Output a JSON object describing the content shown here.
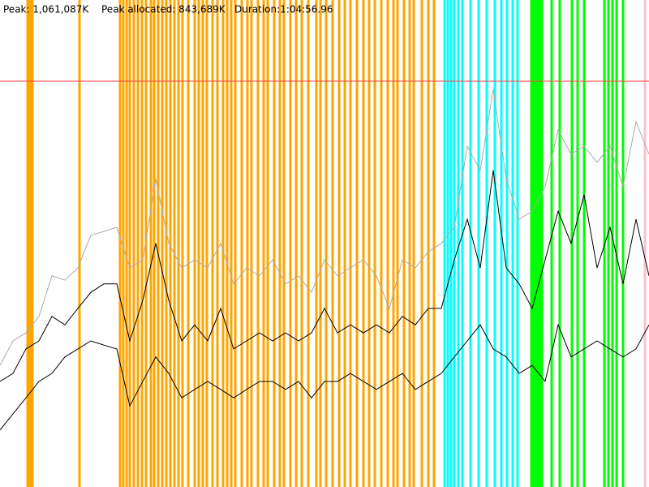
{
  "chart_data": {
    "type": "line",
    "peak": {
      "value": 1061087,
      "label": "Peak: 1,061,087K"
    },
    "peak_allocated": {
      "value": 843689,
      "label": "Peak allocated: 843,689K"
    },
    "duration": "Duration:1:04:56.96",
    "ylim": [
      0,
      1273304
    ],
    "xlim": [
      0,
      800
    ],
    "peak_color": "#ff4040",
    "x": [
      0,
      16,
      32,
      48,
      64,
      80,
      96,
      112,
      128,
      144,
      160,
      176,
      192,
      208,
      224,
      240,
      256,
      272,
      288,
      304,
      320,
      336,
      352,
      368,
      384,
      400,
      416,
      432,
      448,
      464,
      480,
      496,
      512,
      528,
      544,
      560,
      576,
      592,
      608,
      624,
      640,
      656,
      672,
      688,
      704,
      720,
      736,
      752,
      768,
      784,
      800
    ],
    "series": [
      {
        "color": "#aaaaaa",
        "values": [
          318000,
          382000,
          403000,
          446000,
          552000,
          541000,
          573000,
          658000,
          668000,
          679000,
          573000,
          594000,
          806000,
          637000,
          573000,
          594000,
          573000,
          637000,
          531000,
          573000,
          552000,
          594000,
          531000,
          552000,
          509000,
          594000,
          552000,
          573000,
          594000,
          552000,
          467000,
          594000,
          573000,
          615000,
          637000,
          679000,
          891000,
          828000,
          1040000,
          806000,
          700000,
          721000,
          785000,
          934000,
          870000,
          891000,
          849000,
          891000,
          785000,
          955000,
          870000
        ]
      },
      {
        "color": "#000000",
        "values": [
          276000,
          297000,
          361000,
          382000,
          446000,
          424000,
          467000,
          509000,
          531000,
          531000,
          382000,
          488000,
          637000,
          488000,
          382000,
          424000,
          382000,
          467000,
          361000,
          382000,
          403000,
          382000,
          403000,
          382000,
          403000,
          467000,
          403000,
          424000,
          403000,
          424000,
          403000,
          446000,
          424000,
          467000,
          467000,
          594000,
          700000,
          573000,
          828000,
          573000,
          531000,
          467000,
          594000,
          721000,
          637000,
          764000,
          573000,
          679000,
          531000,
          700000,
          552000
        ]
      },
      {
        "color": "#000000",
        "values": [
          149000,
          191000,
          233000,
          276000,
          297000,
          340000,
          361000,
          382000,
          371000,
          361000,
          212000,
          276000,
          340000,
          297000,
          233000,
          255000,
          276000,
          255000,
          233000,
          255000,
          276000,
          276000,
          255000,
          276000,
          233000,
          276000,
          276000,
          297000,
          276000,
          255000,
          276000,
          297000,
          255000,
          276000,
          297000,
          340000,
          382000,
          424000,
          361000,
          340000,
          297000,
          318000,
          276000,
          424000,
          340000,
          361000,
          382000,
          361000,
          340000,
          361000,
          424000
        ]
      }
    ],
    "events": [
      {
        "color": "#ffa500",
        "positions": [
          34,
          36,
          38,
          40,
          98,
          148,
          152,
          156,
          160,
          165,
          170,
          175,
          180,
          186,
          190,
          195,
          200,
          205,
          210,
          215,
          220,
          225,
          232,
          240,
          245,
          250,
          255,
          262,
          268,
          275,
          280,
          285,
          290,
          298,
          305,
          310,
          318,
          325,
          330,
          338,
          345,
          350,
          358,
          365,
          372,
          380,
          390,
          395,
          402,
          410,
          418,
          425,
          432,
          440,
          448,
          455,
          462,
          470,
          478,
          485,
          490,
          498,
          505,
          510,
          520,
          528,
          535
        ]
      },
      {
        "color": "#00ffff",
        "positions": [
          548,
          552,
          556,
          560,
          565,
          570,
          580,
          590,
          600,
          610,
          618,
          625,
          632,
          638
        ]
      },
      {
        "color": "#00ff00",
        "positions": [
          655,
          658,
          660,
          663,
          665,
          668,
          680,
          690,
          705,
          712,
          720,
          745,
          750,
          755,
          760,
          768
        ]
      },
      {
        "color": "#ffc0cb",
        "positions": [
          795
        ]
      }
    ]
  }
}
